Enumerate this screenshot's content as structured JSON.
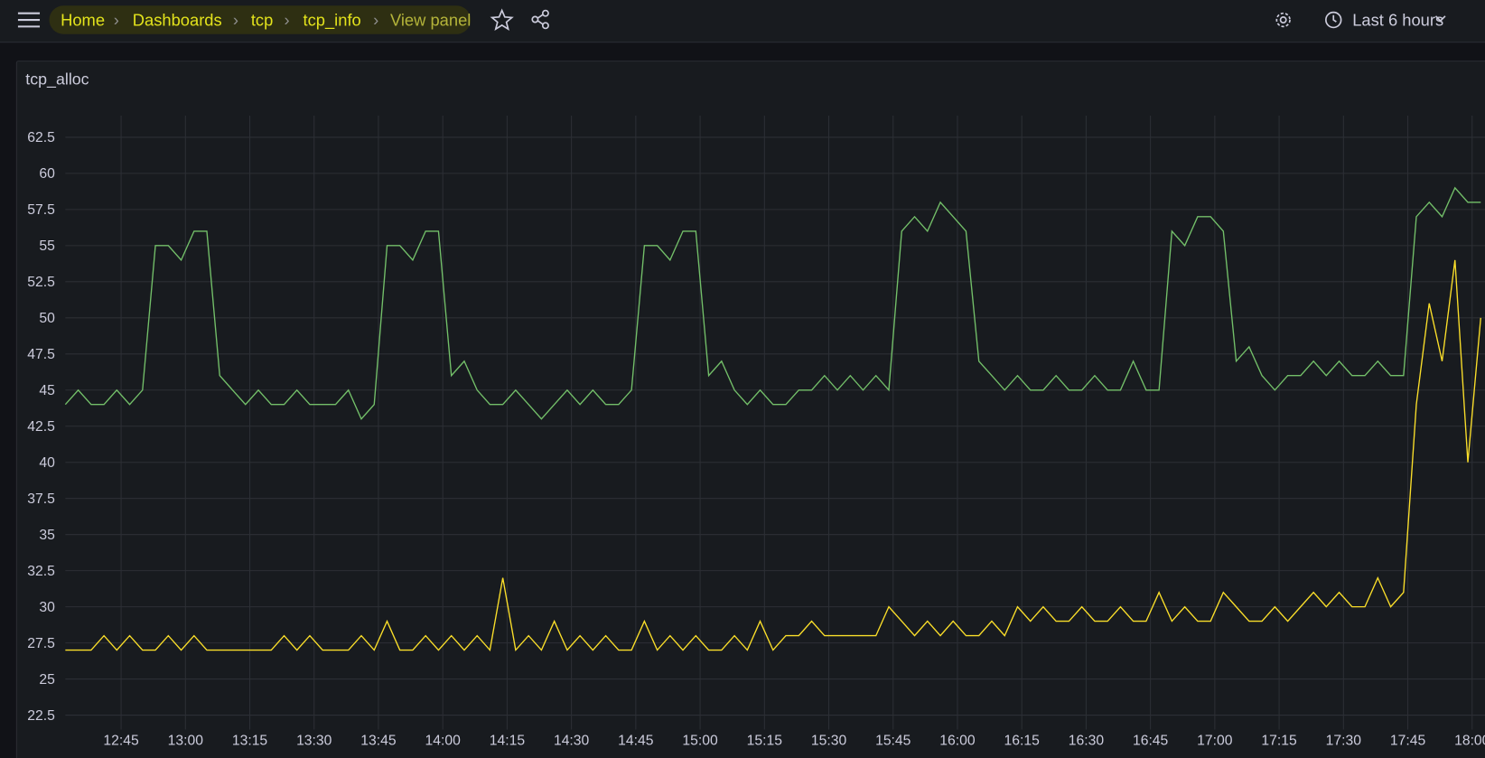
{
  "header": {
    "breadcrumbs": [
      "Home",
      "Dashboards",
      "tcp",
      "tcp_info",
      "View panel"
    ],
    "time_range": "Last 6 hours"
  },
  "chart_data": {
    "type": "line",
    "title": "tcp_alloc",
    "x": [
      752,
      755,
      758,
      761,
      764,
      767,
      770,
      773,
      776,
      779,
      782,
      785,
      788,
      791,
      794,
      797,
      800,
      803,
      806,
      809,
      812,
      815,
      818,
      821,
      824,
      827,
      830,
      833,
      836,
      839,
      842,
      845,
      848,
      851,
      854,
      857,
      860,
      863,
      866,
      869,
      872,
      875,
      878,
      881,
      884,
      887,
      890,
      893,
      896,
      899,
      902,
      905,
      908,
      911,
      914,
      917,
      920,
      923,
      926,
      929,
      932,
      935,
      938,
      941,
      944,
      947,
      950,
      953,
      956,
      959,
      962,
      965,
      968,
      971,
      974,
      977,
      980,
      983,
      986,
      989,
      992,
      995,
      998,
      1001,
      1004,
      1007,
      1010,
      1013,
      1016,
      1019,
      1022,
      1025,
      1028,
      1031,
      1034,
      1037,
      1040,
      1043,
      1046,
      1049,
      1052,
      1055,
      1058,
      1061,
      1064,
      1067,
      1070,
      1073,
      1076,
      1079,
      1082
    ],
    "series": [
      {
        "color": "#73bf69",
        "values": [
          44,
          45,
          44,
          44,
          45,
          44,
          45,
          55,
          55,
          54,
          56,
          56,
          46,
          45,
          44,
          45,
          44,
          44,
          45,
          44,
          44,
          44,
          45,
          43,
          44,
          55,
          55,
          54,
          56,
          56,
          46,
          47,
          45,
          44,
          44,
          45,
          44,
          43,
          44,
          45,
          44,
          45,
          44,
          44,
          45,
          55,
          55,
          54,
          56,
          56,
          46,
          47,
          45,
          44,
          45,
          44,
          44,
          45,
          45,
          46,
          45,
          46,
          45,
          46,
          45,
          56,
          57,
          56,
          58,
          57,
          56,
          47,
          46,
          45,
          46,
          45,
          45,
          46,
          45,
          45,
          46,
          45,
          45,
          47,
          45,
          45,
          56,
          55,
          57,
          57,
          56,
          47,
          48,
          46,
          45,
          46,
          46,
          47,
          46,
          47,
          46,
          46,
          47,
          46,
          46,
          57,
          58,
          57,
          59,
          58,
          58
        ]
      },
      {
        "color": "#fade2a",
        "values": [
          27,
          27,
          27,
          28,
          27,
          28,
          27,
          27,
          28,
          27,
          28,
          27,
          27,
          27,
          27,
          27,
          27,
          28,
          27,
          28,
          27,
          27,
          27,
          28,
          27,
          29,
          27,
          27,
          28,
          27,
          28,
          27,
          28,
          27,
          32,
          27,
          28,
          27,
          29,
          27,
          28,
          27,
          28,
          27,
          27,
          29,
          27,
          28,
          27,
          28,
          27,
          27,
          28,
          27,
          29,
          27,
          28,
          28,
          29,
          28,
          28,
          28,
          28,
          28,
          30,
          29,
          28,
          29,
          28,
          29,
          28,
          28,
          29,
          28,
          30,
          29,
          30,
          29,
          29,
          30,
          29,
          29,
          30,
          29,
          29,
          31,
          29,
          30,
          29,
          29,
          31,
          30,
          29,
          29,
          30,
          29,
          30,
          31,
          30,
          31,
          30,
          30,
          32,
          30,
          31,
          44,
          51,
          47,
          54,
          40,
          50
        ]
      }
    ],
    "xlim": [
      752,
      1083
    ],
    "xticks": [
      {
        "value": 765,
        "label": "12:45"
      },
      {
        "value": 780,
        "label": "13:00"
      },
      {
        "value": 795,
        "label": "13:15"
      },
      {
        "value": 810,
        "label": "13:30"
      },
      {
        "value": 825,
        "label": "13:45"
      },
      {
        "value": 840,
        "label": "14:00"
      },
      {
        "value": 855,
        "label": "14:15"
      },
      {
        "value": 870,
        "label": "14:30"
      },
      {
        "value": 885,
        "label": "14:45"
      },
      {
        "value": 900,
        "label": "15:00"
      },
      {
        "value": 915,
        "label": "15:15"
      },
      {
        "value": 930,
        "label": "15:30"
      },
      {
        "value": 945,
        "label": "15:45"
      },
      {
        "value": 960,
        "label": "16:00"
      },
      {
        "value": 975,
        "label": "16:15"
      },
      {
        "value": 990,
        "label": "16:30"
      },
      {
        "value": 1005,
        "label": "16:45"
      },
      {
        "value": 1020,
        "label": "17:00"
      },
      {
        "value": 1035,
        "label": "17:15"
      },
      {
        "value": 1050,
        "label": "17:30"
      },
      {
        "value": 1065,
        "label": "17:45"
      },
      {
        "value": 1080,
        "label": "18:00"
      }
    ],
    "ylim": [
      21.5,
      64
    ],
    "yticks": [
      22.5,
      25,
      27.5,
      30,
      32.5,
      35,
      37.5,
      40,
      42.5,
      45,
      47.5,
      50,
      52.5,
      55,
      57.5,
      60,
      62.5
    ],
    "grid": true
  }
}
